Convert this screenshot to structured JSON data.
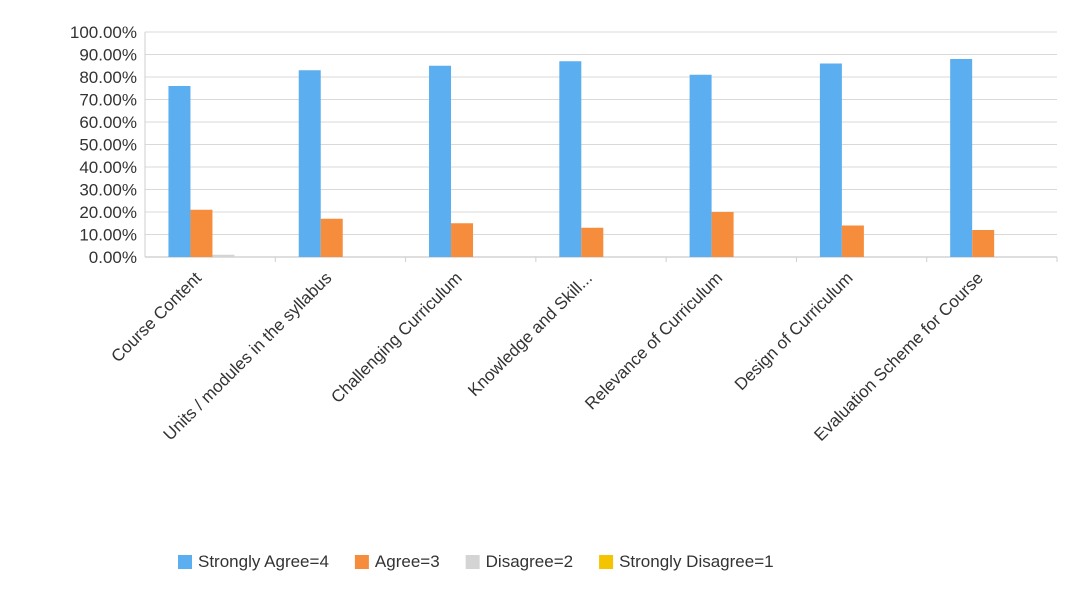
{
  "chart_data": {
    "type": "bar",
    "title": "",
    "xlabel": "",
    "ylabel": "",
    "ylim": [
      0,
      1
    ],
    "ytick_labels": [
      "0.00%",
      "10.00%",
      "20.00%",
      "30.00%",
      "40.00%",
      "50.00%",
      "60.00%",
      "70.00%",
      "80.00%",
      "90.00%",
      "100.00%"
    ],
    "categories": [
      "Course Content",
      "Units / modules in the syllabus",
      "Challenging Curriculum",
      "Knowledge and Skill...",
      "Relevance of Curriculum",
      "Design of Curriculum",
      "Evaluation Scheme for Course"
    ],
    "series": [
      {
        "name": "Strongly Agree=4",
        "color": "#5baef0",
        "values": [
          0.76,
          0.83,
          0.85,
          0.87,
          0.81,
          0.86,
          0.88
        ]
      },
      {
        "name": "Agree=3",
        "color": "#f58d3c",
        "values": [
          0.21,
          0.17,
          0.15,
          0.13,
          0.2,
          0.14,
          0.12
        ]
      },
      {
        "name": "Disagree=2",
        "color": "#d4d4d4",
        "values": [
          0.01,
          0,
          0,
          0,
          0,
          0,
          0
        ]
      },
      {
        "name": "Strongly Disagree=1",
        "color": "#f5c400",
        "values": [
          0,
          0,
          0,
          0,
          0,
          0,
          0
        ]
      }
    ],
    "grid": true,
    "legend_position": "bottom"
  }
}
